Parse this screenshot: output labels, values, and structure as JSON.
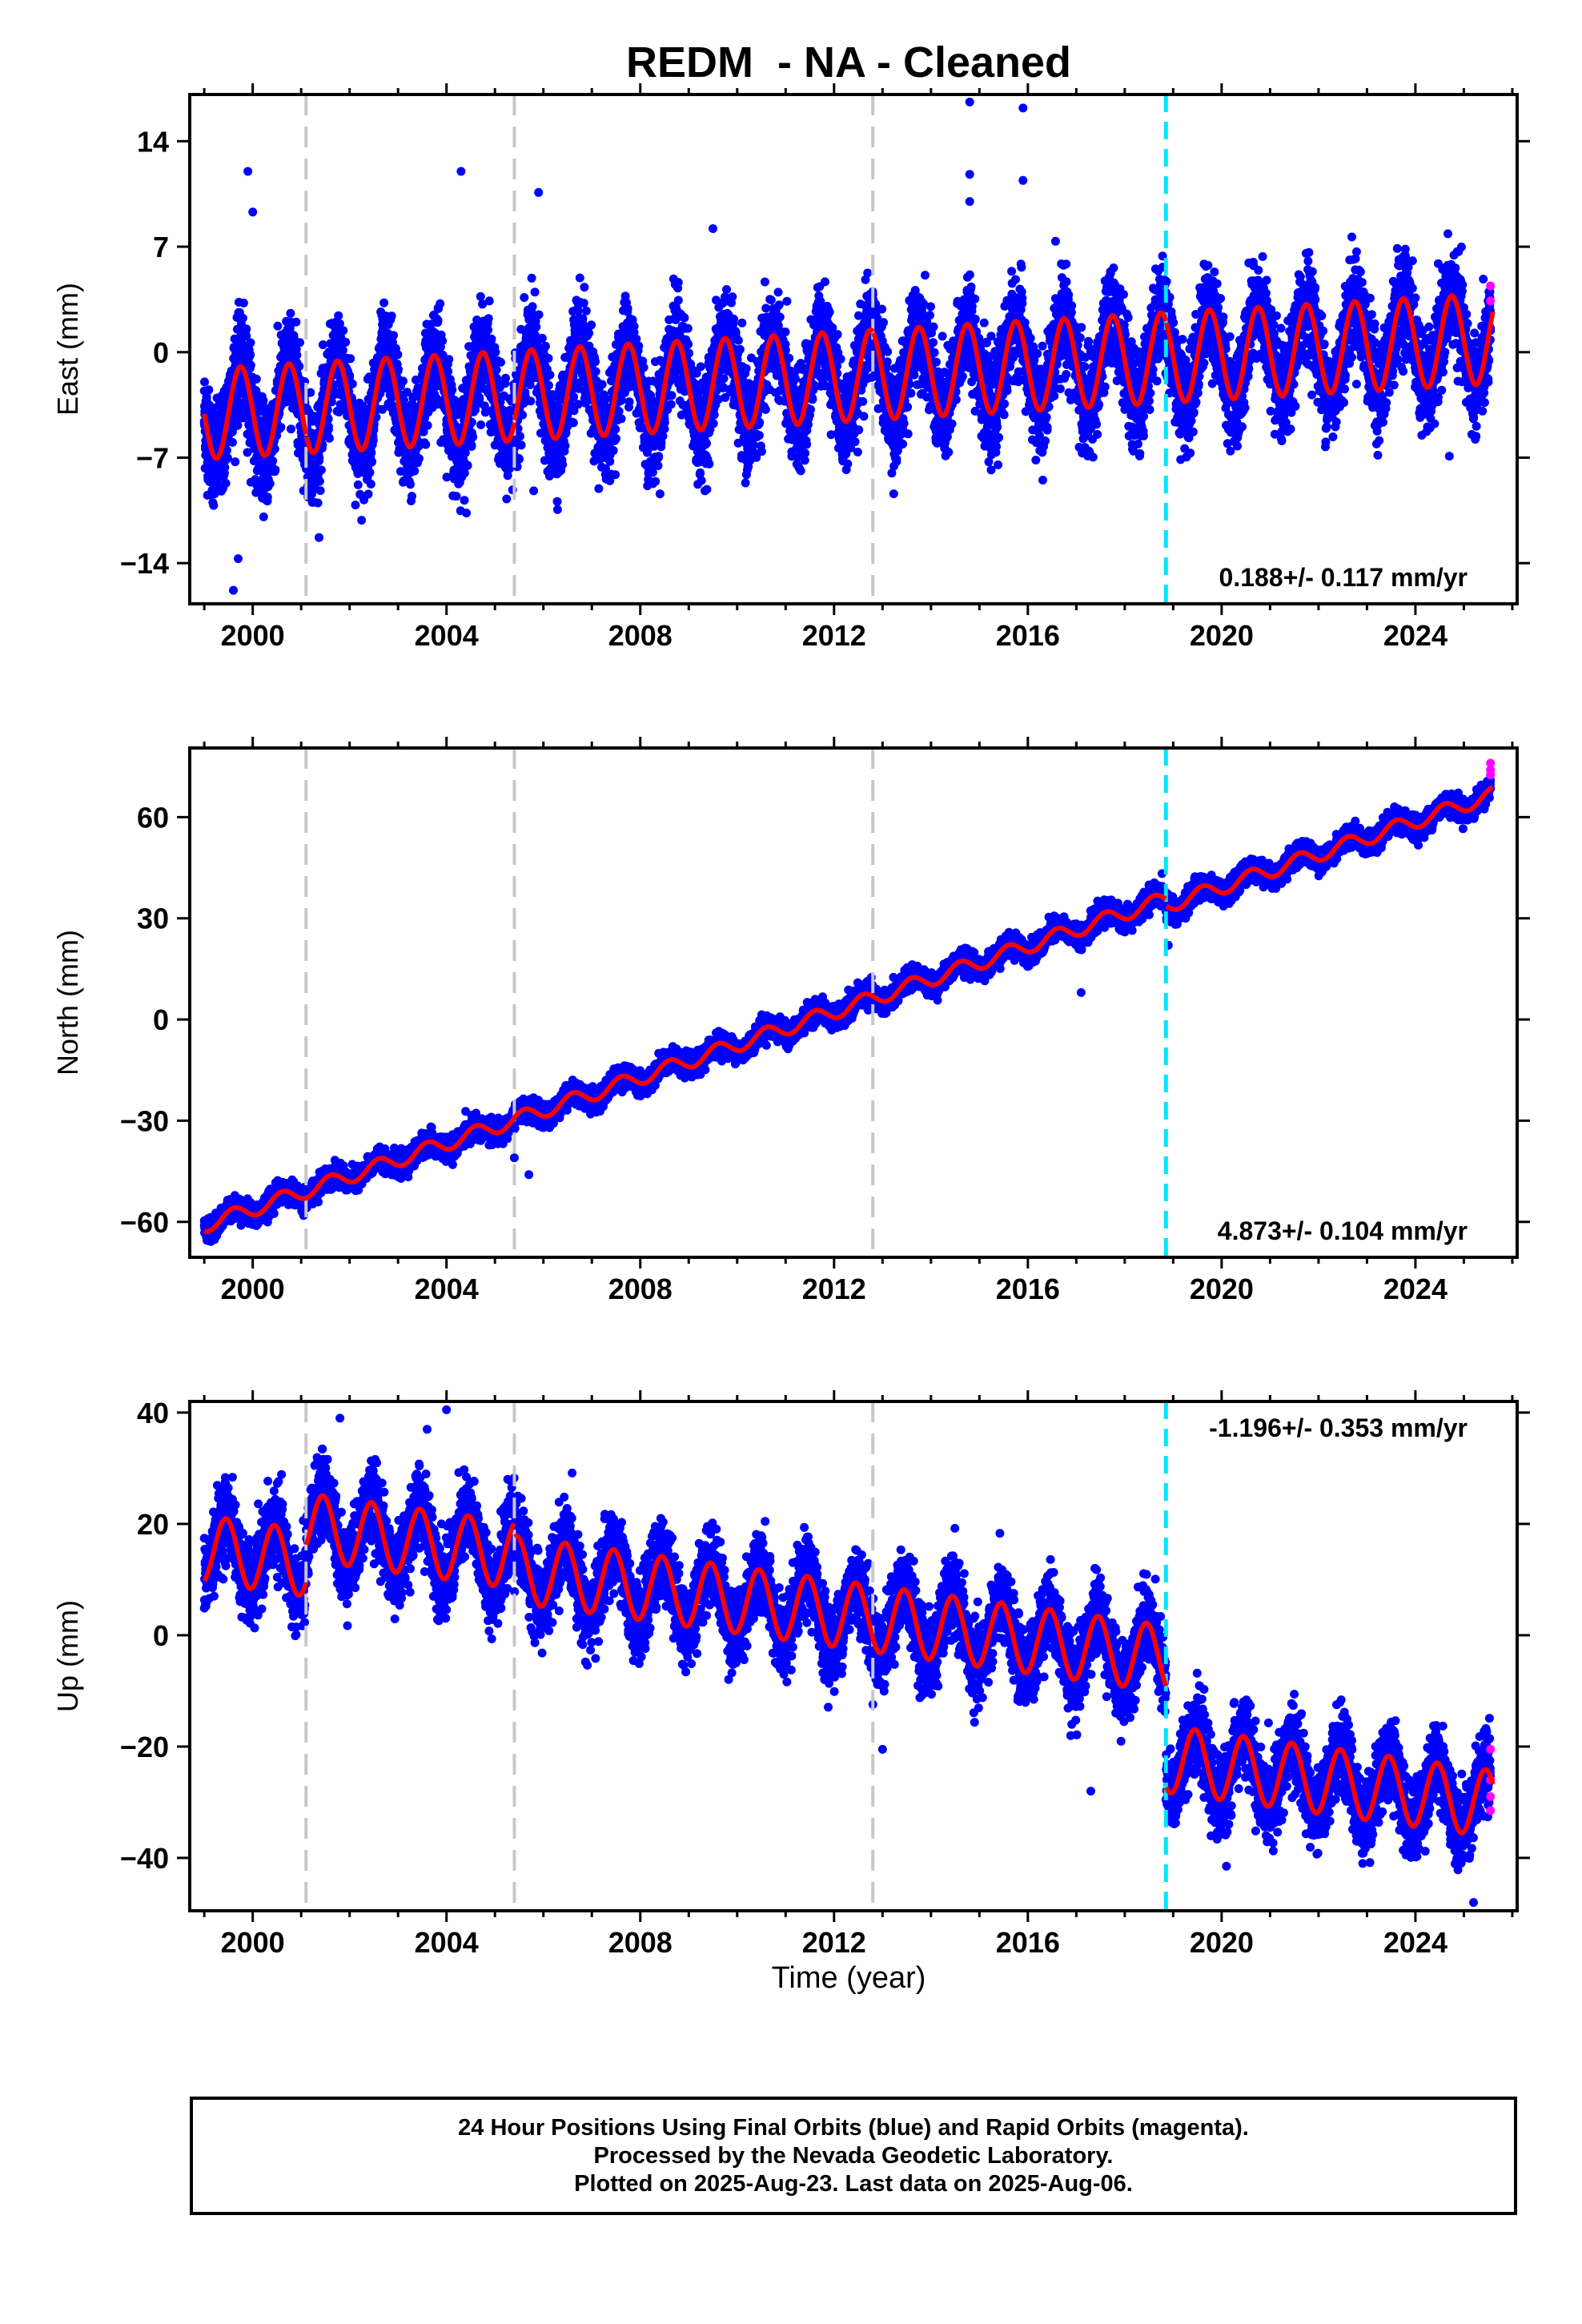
{
  "figure": {
    "title": "REDM  - NA - Cleaned",
    "xlabel": "Time (year)",
    "footer_lines": [
      "24 Hour Positions Using Final Orbits (blue) and Rapid Orbits (magenta).",
      "Processed by the Nevada Geodetic Laboratory.",
      "Plotted on 2025-Aug-23. Last data on 2025-Aug-06."
    ]
  },
  "colors": {
    "final_orbits": "#0000ff",
    "rapid_orbits": "#ff00ff",
    "model_fit": "#ff0000",
    "equipment_change": "#c8c8c8",
    "earthquake": "#00e5ff",
    "axes": "#000000"
  },
  "chart_data": [
    {
      "type": "scatter",
      "component": "East",
      "ylabel": "East (mm)",
      "xlim": [
        1998.7,
        2026.1
      ],
      "ylim": [
        -16.7,
        17.1
      ],
      "xticks": [
        2000,
        2004,
        2008,
        2012,
        2016,
        2020,
        2024
      ],
      "yticks": [
        -14,
        -7,
        0,
        7,
        14
      ],
      "rate_label": "0.188+/- 0.117 mm/yr",
      "rate_label_position": "bottom-right",
      "fit": {
        "start": 1999.0,
        "end": 2025.6,
        "offset_at_start": -4.1,
        "rate": 0.188,
        "annual_amplitude": 3.0,
        "annual_phase_peak": 0.75,
        "offsets": [
          {
            "x": 2001.1,
            "dy": 0.0
          },
          {
            "x": 2005.4,
            "dy": 0.0
          },
          {
            "x": 2012.8,
            "dy": 0.0
          },
          {
            "x": 2018.85,
            "dy": 0.0
          }
        ]
      },
      "scatter_noise": 1.6,
      "outliers": [
        [
          1999.9,
          12.0
        ],
        [
          2000.0,
          9.3
        ],
        [
          2004.3,
          12.0
        ],
        [
          2005.9,
          10.6
        ],
        [
          2009.5,
          8.2
        ],
        [
          2014.8,
          16.6
        ],
        [
          2014.8,
          11.8
        ],
        [
          2014.8,
          10.0
        ],
        [
          2015.9,
          16.2
        ],
        [
          2015.9,
          11.4
        ],
        [
          1999.7,
          -13.7
        ],
        [
          1999.6,
          -15.8
        ],
        [
          2005.8,
          -9.2
        ],
        [
          2024.7,
          -6.9
        ]
      ],
      "rapid_points": [
        [
          2025.55,
          4.4
        ],
        [
          2025.55,
          3.4
        ]
      ],
      "breaks": [
        {
          "x": 2001.1,
          "kind": "equipment"
        },
        {
          "x": 2005.4,
          "kind": "equipment"
        },
        {
          "x": 2012.8,
          "kind": "equipment"
        },
        {
          "x": 2018.85,
          "kind": "earthquake"
        }
      ]
    },
    {
      "type": "scatter",
      "component": "North",
      "ylabel": "North (mm)",
      "xlim": [
        1998.7,
        2026.1
      ],
      "ylim": [
        -70.5,
        80.5
      ],
      "xticks": [
        2000,
        2004,
        2008,
        2012,
        2016,
        2020,
        2024
      ],
      "yticks": [
        -60,
        -30,
        0,
        30,
        60
      ],
      "rate_label": "4.873+/- 0.104 mm/yr",
      "rate_label_position": "bottom-right",
      "fit": {
        "start": 1999.0,
        "end": 2025.6,
        "offset_at_start": -61.0,
        "rate": 4.873,
        "annual_amplitude": 2.2,
        "annual_phase_peak": 0.6,
        "offsets": [
          {
            "x": 2018.85,
            "dy": -2.0
          }
        ]
      },
      "scatter_noise": 1.6,
      "outliers": [
        [
          2005.7,
          -46.0
        ],
        [
          2005.4,
          -41.0
        ],
        [
          2017.1,
          8.0
        ],
        [
          2018.9,
          22.0
        ]
      ],
      "rapid_points": [
        [
          2025.55,
          76.0
        ],
        [
          2025.55,
          74.0
        ],
        [
          2025.55,
          72.5
        ]
      ],
      "breaks": [
        {
          "x": 2001.1,
          "kind": "equipment"
        },
        {
          "x": 2005.4,
          "kind": "equipment"
        },
        {
          "x": 2012.8,
          "kind": "equipment"
        },
        {
          "x": 2018.85,
          "kind": "earthquake"
        }
      ]
    },
    {
      "type": "scatter",
      "component": "Up",
      "ylabel": "Up (mm)",
      "xlim": [
        1998.7,
        2026.1
      ],
      "ylim": [
        -49.5,
        42.0
      ],
      "xticks": [
        2000,
        2004,
        2008,
        2012,
        2016,
        2020,
        2024
      ],
      "yticks": [
        -40,
        -20,
        0,
        20,
        40
      ],
      "rate_label": "-1.196+/- 0.353 mm/yr",
      "rate_label_position": "top-right",
      "fit": {
        "start": 1999.0,
        "end": 2025.6,
        "offset_at_start": 15.5,
        "rate": -1.196,
        "annual_amplitude": 6.0,
        "annual_phase_peak": 0.45,
        "offsets": [
          {
            "x": 2001.1,
            "dy": 6.5
          },
          {
            "x": 2005.4,
            "dy": -2.5
          },
          {
            "x": 2018.85,
            "dy": -18.0
          }
        ]
      },
      "scatter_noise": 3.5,
      "outliers": [
        [
          2001.8,
          39.0
        ],
        [
          2004.0,
          40.5
        ],
        [
          2003.6,
          37.0
        ],
        [
          2017.3,
          -28.0
        ],
        [
          2013.0,
          -20.5
        ],
        [
          2025.2,
          -48.0
        ],
        [
          2020.1,
          -41.5
        ]
      ],
      "rapid_points": [
        [
          2025.55,
          -20.5
        ],
        [
          2025.55,
          -26.0
        ],
        [
          2025.55,
          -29.0
        ],
        [
          2025.55,
          -31.5
        ]
      ],
      "breaks": [
        {
          "x": 2001.1,
          "kind": "equipment"
        },
        {
          "x": 2005.4,
          "kind": "equipment"
        },
        {
          "x": 2012.8,
          "kind": "equipment"
        },
        {
          "x": 2018.85,
          "kind": "earthquake"
        }
      ]
    }
  ]
}
